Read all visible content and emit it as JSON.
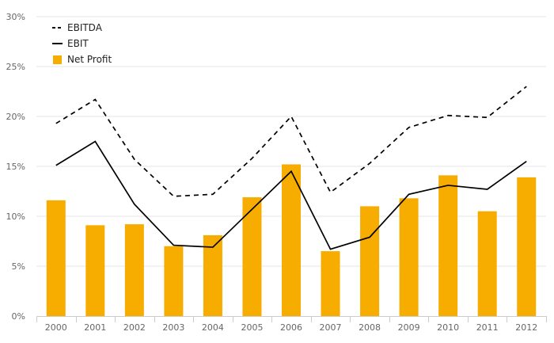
{
  "chart_data": {
    "type": "bar",
    "categories": [
      "2000",
      "2001",
      "2002",
      "2003",
      "2004",
      "2005",
      "2006",
      "2007",
      "2008",
      "2009",
      "2010",
      "2011",
      "2012"
    ],
    "series": [
      {
        "name": "EBITDA",
        "kind": "line",
        "style": "dashed",
        "color": "#000000",
        "values": [
          19.3,
          21.7,
          15.7,
          12.0,
          12.2,
          15.8,
          20.0,
          12.4,
          15.3,
          18.9,
          20.1,
          19.9,
          23.0
        ]
      },
      {
        "name": "EBIT",
        "kind": "line",
        "style": "solid",
        "color": "#000000",
        "values": [
          15.1,
          17.5,
          11.2,
          7.1,
          6.9,
          10.7,
          14.5,
          6.7,
          7.9,
          12.2,
          13.1,
          12.7,
          15.5
        ]
      },
      {
        "name": "Net Profit",
        "kind": "bar",
        "color": "#f7ac00",
        "values": [
          11.6,
          9.1,
          9.2,
          7.0,
          8.1,
          11.9,
          15.2,
          6.5,
          11.0,
          11.8,
          14.1,
          10.5,
          13.9
        ]
      }
    ],
    "y_ticks": [
      "0%",
      "5%",
      "10%",
      "15%",
      "20%",
      "25%",
      "30%"
    ],
    "ylim": [
      0,
      30
    ],
    "grid": true,
    "legend_position": "top-left",
    "title": "",
    "xlabel": "",
    "ylabel": ""
  }
}
